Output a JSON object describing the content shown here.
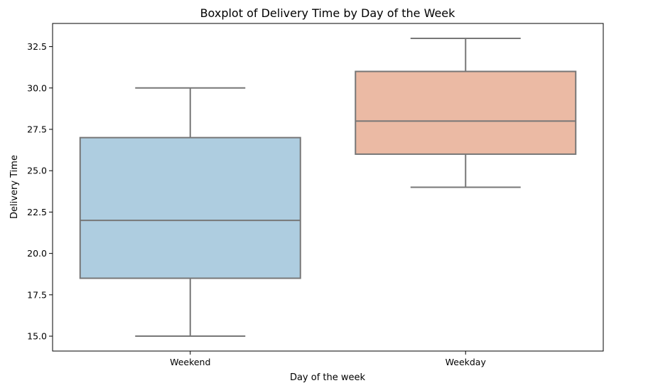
{
  "chart_data": {
    "type": "box",
    "title": "Boxplot of Delivery Time by Day of the Week",
    "xlabel": "Day of the week",
    "ylabel": "Delivery Time",
    "categories": [
      "Weekend",
      "Weekday"
    ],
    "boxes": [
      {
        "category": "Weekend",
        "whisker_low": 15.0,
        "q1": 18.5,
        "median": 22.0,
        "q3": 27.0,
        "whisker_high": 30.0,
        "color": "#aecde0"
      },
      {
        "category": "Weekday",
        "whisker_low": 24.0,
        "q1": 26.0,
        "median": 28.0,
        "q3": 31.0,
        "whisker_high": 33.0,
        "color": "#ebbaa4"
      }
    ],
    "ylim": [
      14.1,
      33.9
    ],
    "yticks": [
      "15.0",
      "17.5",
      "20.0",
      "22.5",
      "25.0",
      "27.5",
      "30.0",
      "32.5"
    ],
    "grid": false,
    "legend": "none",
    "line_color": "#777777"
  }
}
